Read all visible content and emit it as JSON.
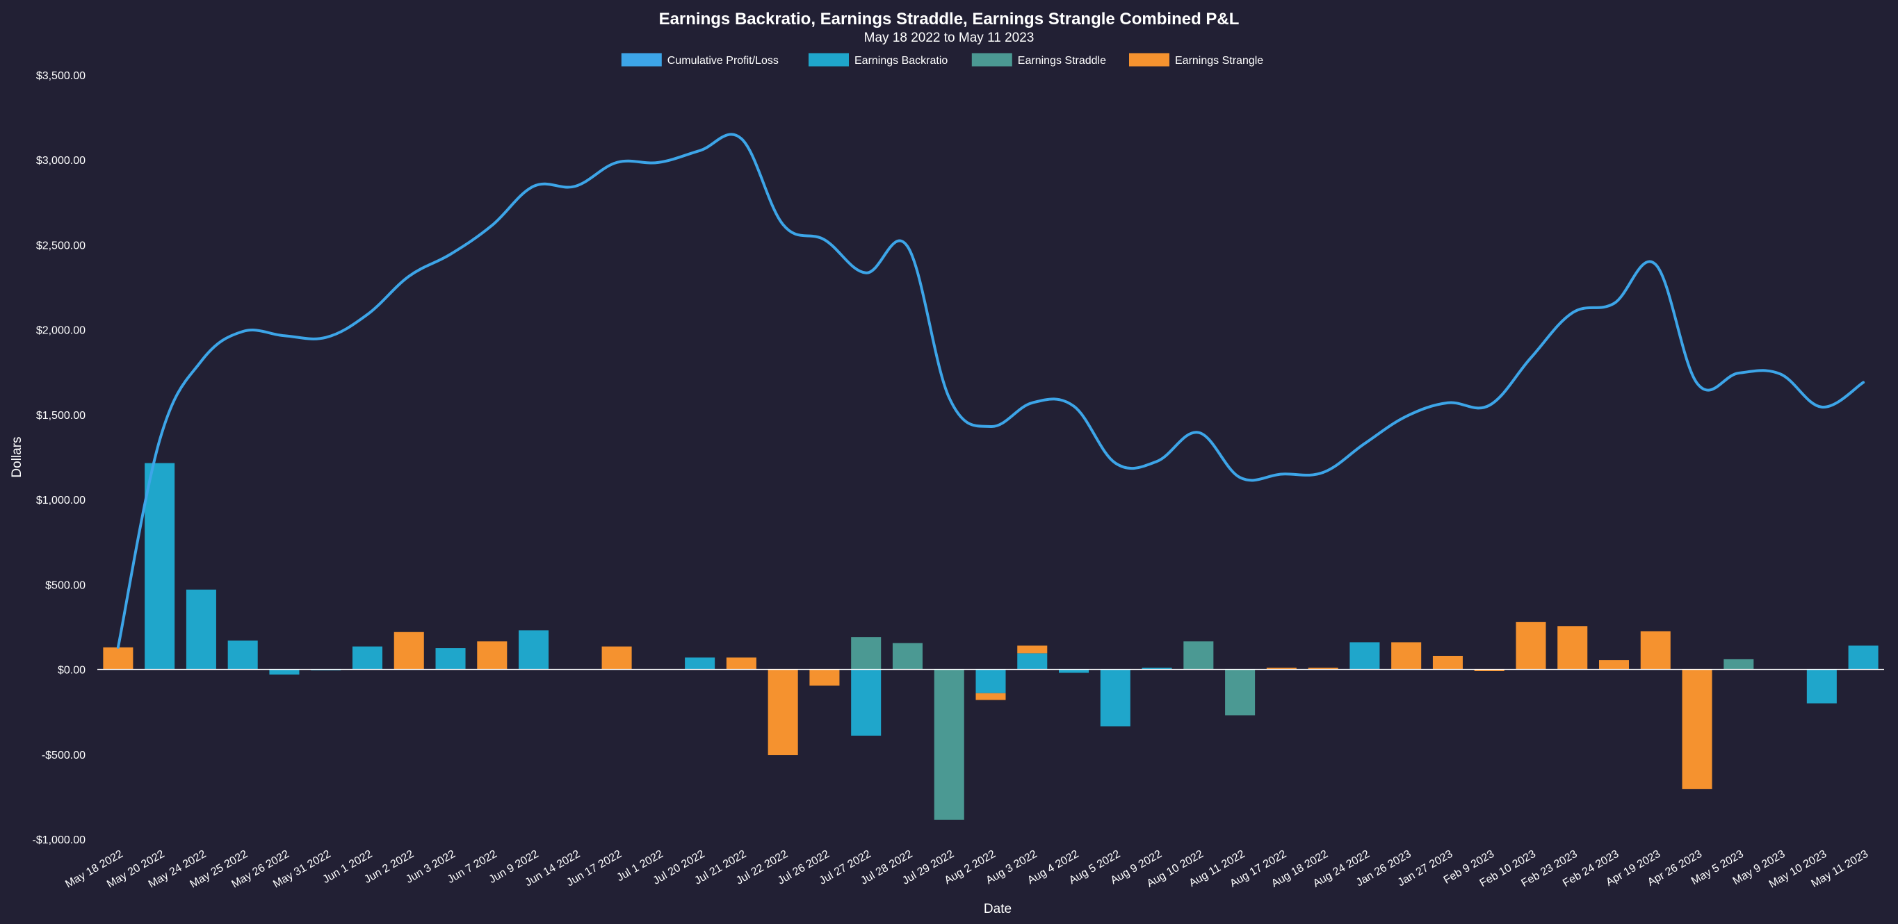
{
  "chart_data": {
    "type": "bar",
    "title": "Earnings Backratio, Earnings Straddle, Earnings Strangle Combined P&L",
    "subtitle": "May 18 2022 to May 11 2023",
    "xlabel": "Date",
    "ylabel": "Dollars",
    "ylim": [
      -1000,
      3500
    ],
    "yticks": [
      3500,
      3000,
      2500,
      2000,
      1500,
      1000,
      500,
      0,
      -500,
      -1000
    ],
    "ytick_labels": [
      "$3,500.00",
      "$3,000.00",
      "$2,500.00",
      "$2,000.00",
      "$1,500.00",
      "$1,000.00",
      "$500.00",
      "$0.00",
      "-$500.00",
      "-$1,000.00"
    ],
    "legend_position": "top-center",
    "grid": false,
    "categories": [
      "May 18 2022",
      "May 20 2022",
      "May 24 2022",
      "May 25 2022",
      "May 26 2022",
      "May 31 2022",
      "Jun 1 2022",
      "Jun 2 2022",
      "Jun 3 2022",
      "Jun 7 2022",
      "Jun 9 2022",
      "Jun 14 2022",
      "Jun 17 2022",
      "Jul 1 2022",
      "Jul 20 2022",
      "Jul 21 2022",
      "Jul 22 2022",
      "Jul 26 2022",
      "Jul 27 2022",
      "Jul 28 2022",
      "Jul 29 2022",
      "Aug 2 2022",
      "Aug 3 2022",
      "Aug 4 2022",
      "Aug 5 2022",
      "Aug 9 2022",
      "Aug 10 2022",
      "Aug 11 2022",
      "Aug 17 2022",
      "Aug 18 2022",
      "Aug 24 2022",
      "Jan 26 2023",
      "Jan 27 2023",
      "Feb 9 2023",
      "Feb 10 2023",
      "Feb 23 2023",
      "Feb 24 2023",
      "Apr 19 2023",
      "Apr 26 2023",
      "May 5 2023",
      "May 9 2023",
      "May 10 2023",
      "May 11 2023"
    ],
    "series": [
      {
        "name": "Cumulative Profit/Loss",
        "type": "line",
        "color": "#3da5e8",
        "values": [
          130,
          1350,
          1815,
          1990,
          1965,
          1955,
          2090,
          2315,
          2445,
          2615,
          2845,
          2845,
          2985,
          2985,
          3055,
          3125,
          2620,
          2530,
          2335,
          2490,
          1600,
          1430,
          1570,
          1550,
          1215,
          1225,
          1395,
          1130,
          1150,
          1160,
          1330,
          1490,
          1570,
          1555,
          1835,
          2100,
          2155,
          2385,
          1685,
          1745,
          1740,
          1545,
          1690
        ]
      },
      {
        "name": "Earnings Backratio",
        "type": "bar",
        "color": "#1fa6cb",
        "values": [
          0,
          1215,
          470,
          170,
          -30,
          -5,
          135,
          0,
          125,
          0,
          230,
          0,
          0,
          0,
          70,
          0,
          0,
          0,
          -390,
          0,
          0,
          -140,
          95,
          -20,
          -335,
          10,
          0,
          0,
          0,
          0,
          160,
          0,
          0,
          0,
          0,
          0,
          0,
          0,
          0,
          0,
          0,
          -200,
          140
        ]
      },
      {
        "name": "Earnings Straddle",
        "type": "bar",
        "color": "#4b9993",
        "values": [
          0,
          0,
          0,
          0,
          0,
          0,
          0,
          0,
          0,
          0,
          0,
          0,
          0,
          0,
          0,
          0,
          0,
          0,
          190,
          155,
          -885,
          0,
          0,
          0,
          0,
          0,
          165,
          -270,
          0,
          0,
          0,
          0,
          0,
          0,
          0,
          0,
          0,
          0,
          0,
          60,
          0,
          0,
          0
        ]
      },
      {
        "name": "Earnings Strangle",
        "type": "bar",
        "color": "#f5922f",
        "values": [
          130,
          0,
          0,
          0,
          0,
          0,
          0,
          220,
          0,
          165,
          0,
          0,
          135,
          0,
          0,
          70,
          -505,
          -95,
          0,
          0,
          0,
          -40,
          45,
          0,
          0,
          0,
          0,
          0,
          10,
          10,
          0,
          160,
          80,
          -10,
          280,
          255,
          55,
          225,
          -705,
          0,
          0,
          0,
          0
        ]
      }
    ]
  }
}
